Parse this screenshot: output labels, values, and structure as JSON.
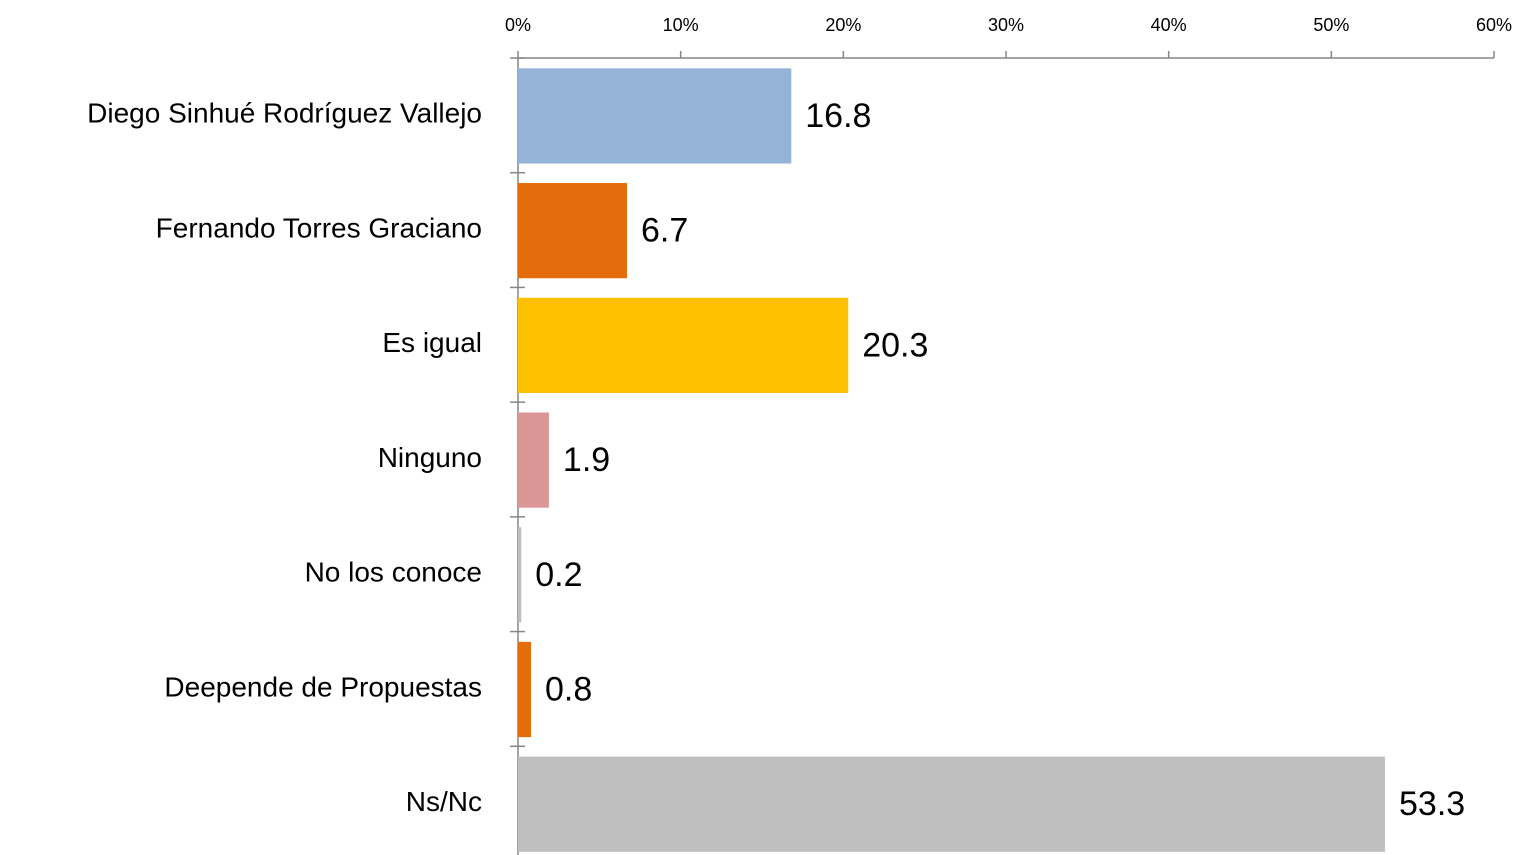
{
  "chart_data": {
    "type": "barh",
    "categories": [
      "Diego Sinhué Rodríguez Vallejo",
      "Fernando Torres Graciano",
      "Es igual",
      "Ninguno",
      "No los conoce",
      "Deepende de Propuestas",
      "Ns/Nc"
    ],
    "values": [
      16.8,
      6.7,
      20.3,
      1.9,
      0.2,
      0.8,
      53.3
    ],
    "colors": [
      "#95b3d7",
      "#e46c0a",
      "#ffc000",
      "#d99694",
      "#bfbfbf",
      "#e46c0a",
      "#bfbfbf"
    ],
    "xlim": [
      0,
      60
    ],
    "xticks": [
      {
        "value": 0,
        "label": "0%"
      },
      {
        "value": 10,
        "label": "10%"
      },
      {
        "value": 20,
        "label": "20%"
      },
      {
        "value": 30,
        "label": "30%"
      },
      {
        "value": 40,
        "label": "40%"
      },
      {
        "value": 50,
        "label": "50%"
      },
      {
        "value": 60,
        "label": "60%"
      }
    ]
  }
}
